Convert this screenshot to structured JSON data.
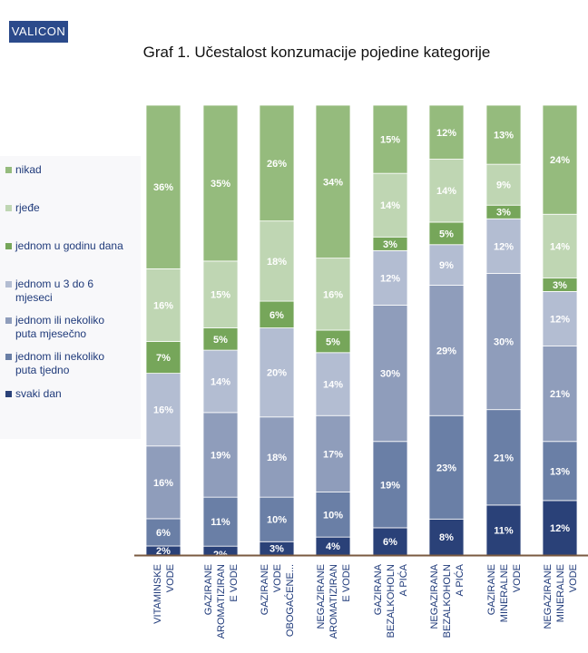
{
  "brand": "VALICON",
  "chart_data": {
    "type": "bar",
    "stacked": true,
    "orientation": "vertical",
    "title": "Graf 1. Učestalost konzumacije pojedine kategorije",
    "xlabel": "",
    "ylabel": "",
    "legend_position": "left",
    "grid": false,
    "categories": [
      [
        "VITAMINSKE",
        "VODE"
      ],
      [
        "GAZIRANE",
        "AROMATIZIRAN",
        "E VODE"
      ],
      [
        "GAZIRANE",
        "VODE",
        "OBOGAĆENE..."
      ],
      [
        "NEGAZIRANE",
        "AROMATIZIRAN",
        "E VODE"
      ],
      [
        "GAZIRANA",
        "BEZALKOHOLN",
        "A PIĆA"
      ],
      [
        "NEGAZIRANA",
        "BEZALKOHOLN",
        "A PIĆA"
      ],
      [
        "GAZIRANE",
        "MINERALNE",
        "VODE"
      ],
      [
        "NEGAZIRANE",
        "MINERALNE",
        "VODE"
      ]
    ],
    "series": [
      {
        "name": "svaki dan",
        "color": "#2a4178",
        "values": [
          2,
          2,
          3,
          4,
          6,
          8,
          11,
          12
        ]
      },
      {
        "name": "jednom ili nekoliko puta tjedno",
        "color": "#6a7fa6",
        "values": [
          6,
          11,
          10,
          10,
          19,
          23,
          21,
          13
        ]
      },
      {
        "name": "jednom ili nekoliko puta mjesečno",
        "color": "#8f9dbb",
        "values": [
          16,
          19,
          18,
          17,
          30,
          29,
          30,
          21
        ]
      },
      {
        "name": "jednom u 3 do 6 mjeseci",
        "color": "#b3bdd2",
        "values": [
          16,
          14,
          20,
          14,
          12,
          9,
          12,
          12
        ]
      },
      {
        "name": "jednom u godinu dana",
        "color": "#76a65a",
        "values": [
          7,
          5,
          6,
          5,
          3,
          5,
          3,
          3
        ]
      },
      {
        "name": "rjeđe",
        "color": "#bfd6b3",
        "values": [
          16,
          15,
          18,
          16,
          14,
          14,
          9,
          14
        ]
      },
      {
        "name": "nikad",
        "color": "#95bb7d",
        "values": [
          36,
          35,
          26,
          34,
          15,
          12,
          13,
          24
        ]
      }
    ],
    "value_suffix": "%",
    "legend": [
      {
        "label": [
          "nikad"
        ],
        "color": "#95bb7d"
      },
      {
        "label": [
          "rjeđe"
        ],
        "color": "#bfd6b3"
      },
      {
        "label": [
          "jednom u godinu dana"
        ],
        "color": "#76a65a"
      },
      {
        "label": [
          "jednom u 3 do 6",
          "mjeseci"
        ],
        "color": "#b3bdd2"
      },
      {
        "label": [
          "jednom ili nekoliko",
          "puta mjesečno"
        ],
        "color": "#8f9dbb"
      },
      {
        "label": [
          "jednom ili nekoliko",
          "puta tjedno"
        ],
        "color": "#6a7fa6"
      },
      {
        "label": [
          "svaki dan"
        ],
        "color": "#2a4178"
      }
    ],
    "axis_color": "#7a5a40"
  }
}
